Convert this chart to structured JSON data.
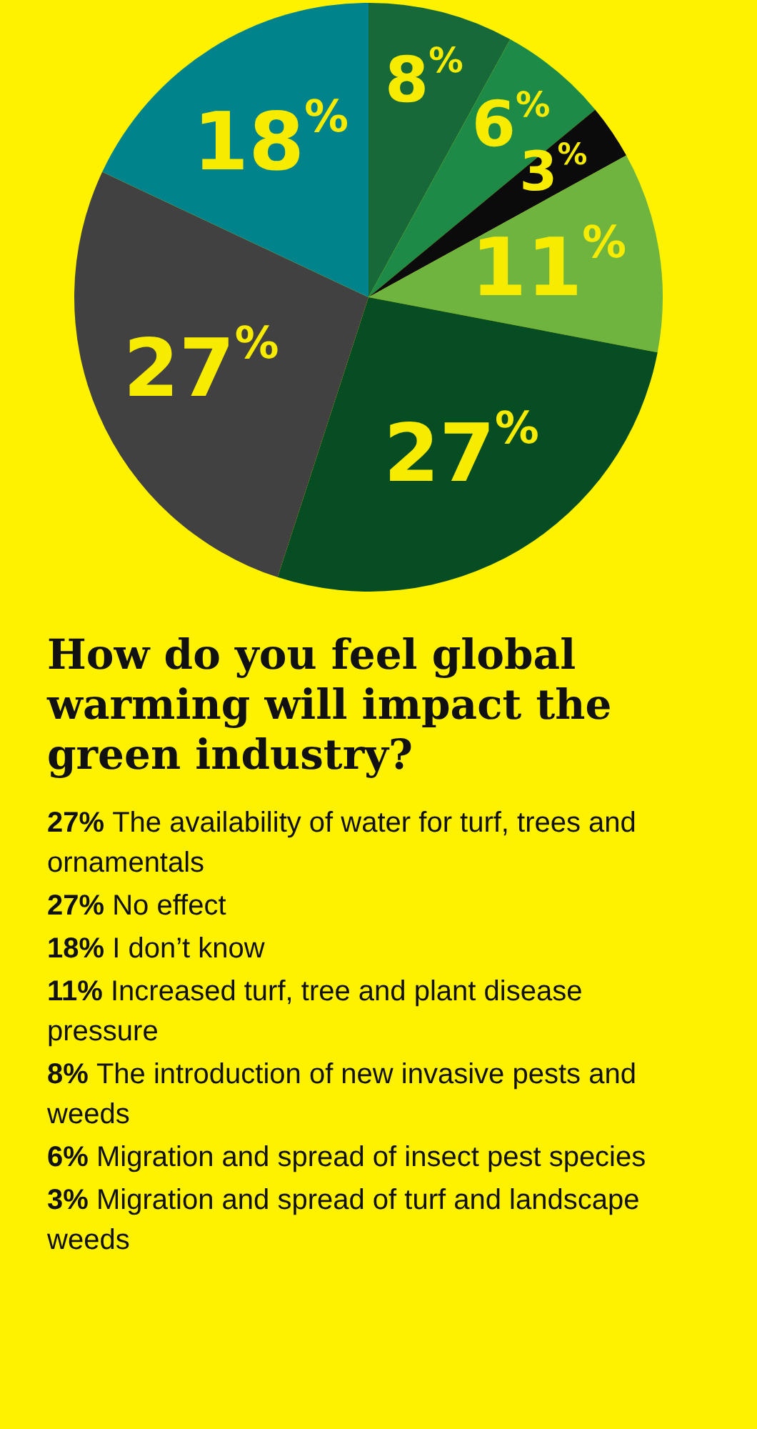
{
  "chart_data": {
    "type": "pie",
    "title": "How do you feel global warming will impact the green industry?",
    "categories": [
      null,
      null,
      null,
      null,
      null,
      null,
      null
    ],
    "values": [
      8,
      6,
      3,
      11,
      27,
      27,
      18
    ],
    "value_labels": [
      "8$^{%}$",
      "6$^{%}$",
      "3$^{%}$",
      "11$^{%}$",
      "27$^{%}$",
      "27$^{%}$",
      "18$^{%}$"
    ],
    "colors": [
      "#17693a",
      "#1d8a48",
      "#0b0b0b",
      "#6fb43f",
      "#074d23",
      "#414141",
      "#00838a"
    ],
    "annotations": [
      "27% The availability of water for turf, trees and ornamentals",
      "27% No effect",
      "18% I don’t know",
      "11% Increased turf, tree and plant disease pressure",
      "8% The introduction of new invasive pests and weeds",
      "6% Migration and spread of insect pest species",
      "3% Migration and spread of turf and landscape weeds"
    ]
  }
}
